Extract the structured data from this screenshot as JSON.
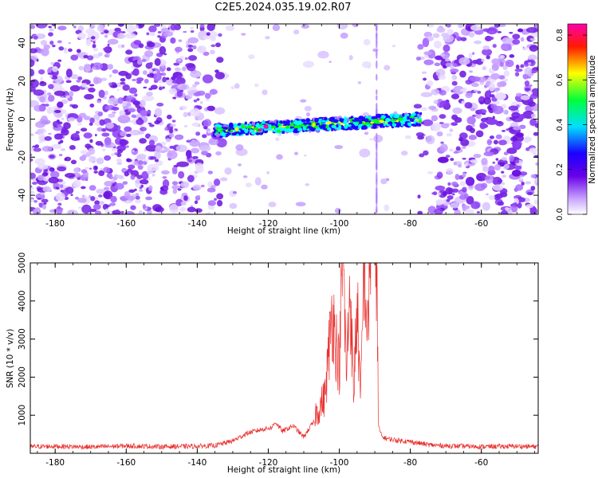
{
  "title": "C2E5.2024.035.19.02.R07",
  "colors": {
    "snr_line": "#e8312f",
    "spectrogram_low": "#c8a6ff",
    "spectrogram_mid": "#5a00e0"
  },
  "chart_data": [
    {
      "type": "heatmap",
      "xlabel": "Height of straight line (km)",
      "ylabel": "Frequency (Hz)",
      "xlim": [
        -187,
        -44
      ],
      "ylim": [
        -50,
        50
      ],
      "xticks": [
        -180,
        -160,
        -140,
        -120,
        -100,
        -80,
        -60
      ],
      "yticks": [
        -40,
        -20,
        0,
        20,
        40
      ],
      "colorbar": {
        "label": "Normalized spectral amplitude",
        "range": [
          0,
          0.85
        ],
        "ticks": [
          0.0,
          0.2,
          0.4,
          0.6,
          0.8
        ],
        "tick_labels": [
          "0.0",
          "0.2",
          "0.4",
          "0.6",
          "0.8"
        ],
        "colormap": [
          "#ffffff",
          "#b070ff",
          "#2000ff",
          "#00ffff",
          "#00ff00",
          "#ffff00",
          "#ff0000",
          "#ff00aa"
        ]
      },
      "signal_band": {
        "x_range": [
          -135,
          -77
        ],
        "frequency_start": -6,
        "frequency_end": 0,
        "peak_amplitude": 0.85
      },
      "grid": false
    },
    {
      "type": "line",
      "xlabel": "Height of straight line (km)",
      "ylabel": "SNR (10 * v/v)",
      "xlim": [
        -187,
        -44
      ],
      "ylim": [
        0,
        5000
      ],
      "xticks": [
        -180,
        -160,
        -140,
        -120,
        -100,
        -80,
        -60
      ],
      "yticks": [
        1000,
        2000,
        3000,
        4000,
        5000
      ],
      "series": [
        {
          "x": [
            -187,
            -180,
            -170,
            -160,
            -150,
            -140,
            -135,
            -130,
            -126,
            -122,
            -119,
            -118,
            -116,
            -113,
            -110,
            -108,
            -106,
            -104,
            -102,
            -100,
            -99,
            -98,
            -97,
            -96,
            -95,
            -94,
            -93,
            -92,
            -91,
            -90,
            -89.5,
            -89,
            -88,
            -86,
            -84,
            -82,
            -80,
            -78,
            -75,
            -70,
            -60,
            -50,
            -44
          ],
          "y": [
            150,
            160,
            140,
            170,
            150,
            160,
            180,
            300,
            500,
            600,
            650,
            800,
            550,
            700,
            400,
            700,
            900,
            1200,
            3000,
            1800,
            4300,
            1600,
            3600,
            1200,
            3200,
            1000,
            4200,
            2400,
            5000,
            5000,
            4200,
            700,
            400,
            350,
            320,
            300,
            280,
            250,
            200,
            170,
            150,
            160,
            150
          ]
        }
      ],
      "grid": false
    }
  ]
}
